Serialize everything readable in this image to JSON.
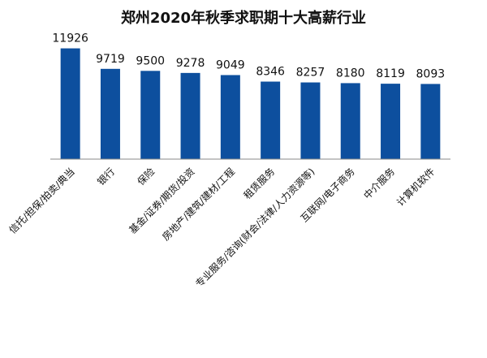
{
  "chart_data": {
    "type": "bar",
    "title": "郑州2020年秋季求职期十大高薪行业",
    "xlabel": "",
    "ylabel": "",
    "categories": [
      "信托/担保/拍卖/典当",
      "银行",
      "保险",
      "基金/证券/期货/投资",
      "房地产/建筑/建材/工程",
      "租赁服务",
      "专业服务/咨询(财会/法律/人力资源等)",
      "互联网/电子商务",
      "中介服务",
      "计算机软件"
    ],
    "values": [
      11926,
      9719,
      9500,
      9278,
      9049,
      8346,
      8257,
      8180,
      8119,
      8093
    ],
    "ylim": [
      0,
      12500
    ],
    "bar_color": "#0d4f9e",
    "axis_color": "#888888",
    "grid": false,
    "legend": "none"
  }
}
